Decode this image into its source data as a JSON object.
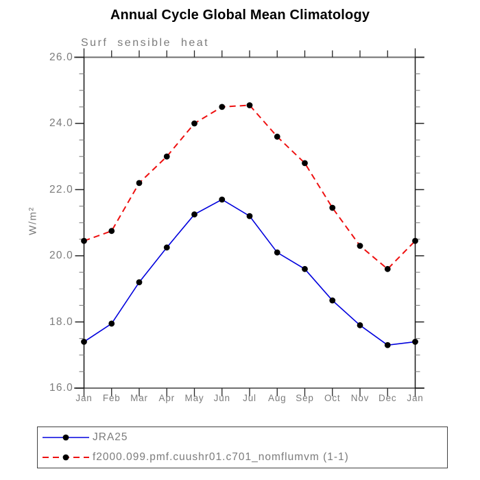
{
  "title": "Annual Cycle Global Mean Climatology",
  "subtitle": "Surf sensible heat",
  "y_axis": {
    "label": "W/m²",
    "tick_labels": [
      "26.0",
      "24.0",
      "22.0",
      "20.0",
      "18.0",
      "16.0"
    ],
    "tick_values": [
      26.0,
      24.0,
      22.0,
      20.0,
      18.0,
      16.0
    ]
  },
  "x_axis": {
    "tick_labels": [
      "Jan",
      "Feb",
      "Mar",
      "Apr",
      "May",
      "Jun",
      "Jul",
      "Aug",
      "Sep",
      "Oct",
      "Nov",
      "Dec",
      "Jan"
    ]
  },
  "colors": {
    "title_text": "#000000",
    "axis_text": "#7b7b7b",
    "frame_horizontal": "#6e6e6e",
    "frame_vertical": "#151515",
    "major_tick": "#222222",
    "minor_tick": "#8a8a8a",
    "marker": "#000000",
    "series_blue": "#0000dd",
    "series_red": "#ee0f0f"
  },
  "chart_data": {
    "type": "line",
    "title": "Annual Cycle Global Mean Climatology",
    "subtitle": "Surf sensible heat",
    "ylabel": "W/m²",
    "xlabel": "",
    "x": [
      "Jan",
      "Feb",
      "Mar",
      "Apr",
      "May",
      "Jun",
      "Jul",
      "Aug",
      "Sep",
      "Oct",
      "Nov",
      "Dec",
      "Jan"
    ],
    "ylim": [
      16.0,
      26.0
    ],
    "y_major_step": 2.0,
    "y_minor_step": 0.5,
    "grid": false,
    "legend_position": "bottom",
    "series": [
      {
        "name": "JRA25",
        "color": "#0000dd",
        "line_style": "solid",
        "marker": "black-dot",
        "values": [
          17.4,
          17.95,
          19.2,
          20.25,
          21.25,
          21.7,
          21.2,
          20.1,
          19.6,
          18.65,
          17.9,
          17.3,
          17.4
        ]
      },
      {
        "name": "f2000.099.pmf.cuushr01.c701_nomflumvm (1-1)",
        "color": "#ee0f0f",
        "line_style": "dashed",
        "marker": "black-dot",
        "values": [
          20.45,
          20.75,
          22.2,
          23.0,
          24.0,
          24.5,
          24.55,
          23.6,
          22.8,
          21.45,
          20.3,
          19.6,
          20.45
        ]
      }
    ]
  }
}
